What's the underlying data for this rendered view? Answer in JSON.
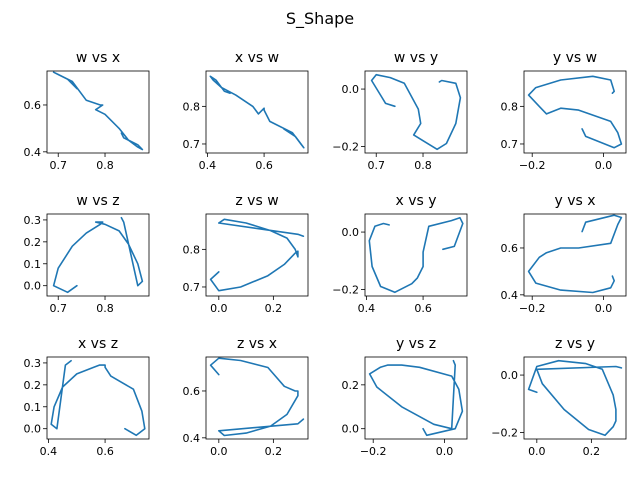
{
  "chart_data": {
    "type": "line",
    "title": "S_Shape",
    "line_color": "#1f77b4",
    "grid": false,
    "series_data": {
      "w": [
        0.74,
        0.72,
        0.69,
        0.7,
        0.73,
        0.76,
        0.79,
        0.795,
        0.78,
        0.8,
        0.83,
        0.85,
        0.87,
        0.88,
        0.87,
        0.84,
        0.835
      ],
      "x": [
        0.67,
        0.71,
        0.74,
        0.73,
        0.7,
        0.62,
        0.6,
        0.6,
        0.58,
        0.56,
        0.5,
        0.45,
        0.42,
        0.41,
        0.43,
        0.46,
        0.48
      ],
      "y": [
        -0.06,
        -0.05,
        0.03,
        0.05,
        0.04,
        0.02,
        -0.07,
        -0.12,
        -0.16,
        -0.18,
        -0.21,
        -0.19,
        -0.12,
        -0.03,
        0.02,
        0.03,
        0.025
      ],
      "z": [
        0.0,
        -0.03,
        0.0,
        0.08,
        0.18,
        0.24,
        0.28,
        0.29,
        0.29,
        0.28,
        0.25,
        0.19,
        0.1,
        0.02,
        0.0,
        0.29,
        0.31
      ]
    },
    "charts": [
      {
        "title": "w vs x",
        "xvar": "w",
        "yvar": "x",
        "xticks": [
          0.7,
          0.8
        ],
        "yticks": [
          0.4,
          0.6
        ],
        "xlim": [
          0.676,
          0.894
        ],
        "ylim": [
          0.395,
          0.745
        ]
      },
      {
        "title": "x vs w",
        "xvar": "x",
        "yvar": "w",
        "xticks": [
          0.4,
          0.6
        ],
        "yticks": [
          0.7,
          0.8
        ],
        "xlim": [
          0.395,
          0.755
        ],
        "ylim": [
          0.676,
          0.894
        ]
      },
      {
        "title": "w vs y",
        "xvar": "w",
        "yvar": "y",
        "xticks": [
          0.7,
          0.8
        ],
        "yticks": [
          0.0,
          -0.2
        ],
        "xlim": [
          0.676,
          0.894
        ],
        "ylim": [
          -0.223,
          0.063
        ]
      },
      {
        "title": "y vs w",
        "xvar": "y",
        "yvar": "w",
        "xticks": [
          -0.2,
          0.0
        ],
        "yticks": [
          0.7,
          0.8
        ],
        "xlim": [
          -0.223,
          0.063
        ],
        "ylim": [
          0.676,
          0.894
        ]
      },
      {
        "title": "w vs z",
        "xvar": "w",
        "yvar": "z",
        "xticks": [
          0.7,
          0.8
        ],
        "yticks": [
          0.0,
          0.1,
          0.2,
          0.3
        ],
        "xlim": [
          0.676,
          0.894
        ],
        "ylim": [
          -0.047,
          0.327
        ]
      },
      {
        "title": "z vs w",
        "xvar": "z",
        "yvar": "w",
        "xticks": [
          0.0,
          0.2
        ],
        "yticks": [
          0.7,
          0.8
        ],
        "xlim": [
          -0.047,
          0.327
        ],
        "ylim": [
          0.676,
          0.894
        ]
      },
      {
        "title": "x vs y",
        "xvar": "x",
        "yvar": "y",
        "xticks": [
          0.4,
          0.6
        ],
        "yticks": [
          0.0,
          -0.2
        ],
        "xlim": [
          0.395,
          0.755
        ],
        "ylim": [
          -0.223,
          0.063
        ]
      },
      {
        "title": "y vs x",
        "xvar": "y",
        "yvar": "x",
        "xticks": [
          -0.2,
          0.0
        ],
        "yticks": [
          0.4,
          0.6
        ],
        "xlim": [
          -0.223,
          0.063
        ],
        "ylim": [
          0.395,
          0.745
        ]
      },
      {
        "title": "x vs z",
        "xvar": "x",
        "yvar": "z",
        "xticks": [
          0.4,
          0.6
        ],
        "yticks": [
          0.0,
          0.1,
          0.2,
          0.3
        ],
        "xlim": [
          0.395,
          0.755
        ],
        "ylim": [
          -0.047,
          0.327
        ]
      },
      {
        "title": "z vs x",
        "xvar": "z",
        "yvar": "x",
        "xticks": [
          0.0,
          0.2
        ],
        "yticks": [
          0.4,
          0.6
        ],
        "xlim": [
          -0.047,
          0.327
        ],
        "ylim": [
          0.395,
          0.745
        ]
      },
      {
        "title": "y vs z",
        "xvar": "y",
        "yvar": "z",
        "xticks": [
          -0.2,
          0.0
        ],
        "yticks": [
          0.0,
          0.2
        ],
        "xlim": [
          -0.223,
          0.063
        ],
        "ylim": [
          -0.047,
          0.327
        ]
      },
      {
        "title": "z vs y",
        "xvar": "z",
        "yvar": "y",
        "xticks": [
          0.0,
          0.2
        ],
        "yticks": [
          0.0,
          -0.2
        ],
        "xlim": [
          -0.047,
          0.327
        ],
        "ylim": [
          -0.223,
          0.063
        ]
      }
    ]
  }
}
